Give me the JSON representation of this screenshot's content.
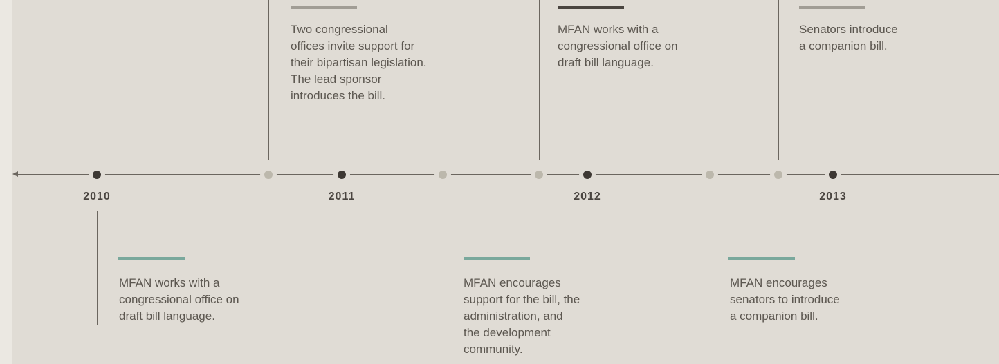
{
  "years": [
    "2010",
    "2011",
    "2012",
    "2013"
  ],
  "events_top": [
    {
      "lines": [
        "Two congressional",
        "offices invite support for",
        "their bipartisan legislation.",
        "The lead sponsor",
        "introduces the bill."
      ]
    },
    {
      "lines": [
        "MFAN works with a",
        "congressional office on",
        "draft bill language."
      ]
    },
    {
      "lines": [
        "Senators introduce",
        "a companion bill."
      ]
    }
  ],
  "events_bottom": [
    {
      "lines": [
        "MFAN works with a",
        "congressional office on",
        "draft bill language."
      ]
    },
    {
      "lines": [
        "MFAN encourages",
        "support for the bill, the",
        "administration, and",
        "the development",
        "community."
      ]
    },
    {
      "lines": [
        "MFAN encourages",
        "senators to introduce",
        "a companion bill."
      ]
    }
  ]
}
